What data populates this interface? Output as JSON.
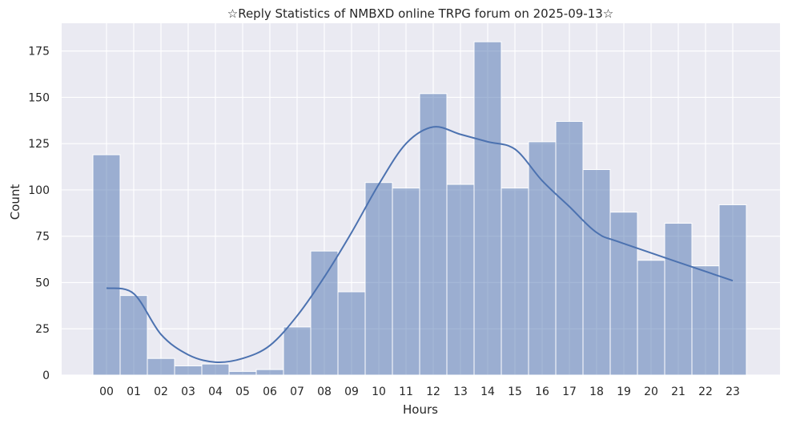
{
  "chart_data": {
    "type": "bar",
    "title": "☆Reply Statistics of NMBXD online TRPG forum on 2025-09-13☆",
    "xlabel": "Hours",
    "ylabel": "Count",
    "categories": [
      "00",
      "01",
      "02",
      "03",
      "04",
      "05",
      "06",
      "07",
      "08",
      "09",
      "10",
      "11",
      "12",
      "13",
      "14",
      "15",
      "16",
      "17",
      "18",
      "19",
      "20",
      "21",
      "22",
      "23"
    ],
    "values": [
      119,
      43,
      9,
      5,
      6,
      2,
      3,
      26,
      67,
      45,
      104,
      101,
      152,
      103,
      180,
      101,
      126,
      137,
      111,
      88,
      62,
      82,
      59,
      92
    ],
    "kde": [
      47,
      44,
      22,
      11,
      7,
      9,
      16,
      32,
      53,
      77,
      103,
      125,
      134,
      130,
      126,
      122,
      105,
      91,
      77,
      71,
      51
    ],
    "kde_x": [
      0,
      1,
      2,
      3,
      4,
      5,
      6,
      7,
      8,
      9,
      10,
      11,
      12,
      13,
      14,
      15,
      16,
      17,
      18,
      19,
      23
    ],
    "ylim": [
      0,
      190
    ],
    "yticks": [
      0,
      25,
      50,
      75,
      100,
      125,
      150,
      175
    ],
    "grid": true,
    "background_color": "#eaeaf2",
    "bar_color": "#4c72b0"
  }
}
